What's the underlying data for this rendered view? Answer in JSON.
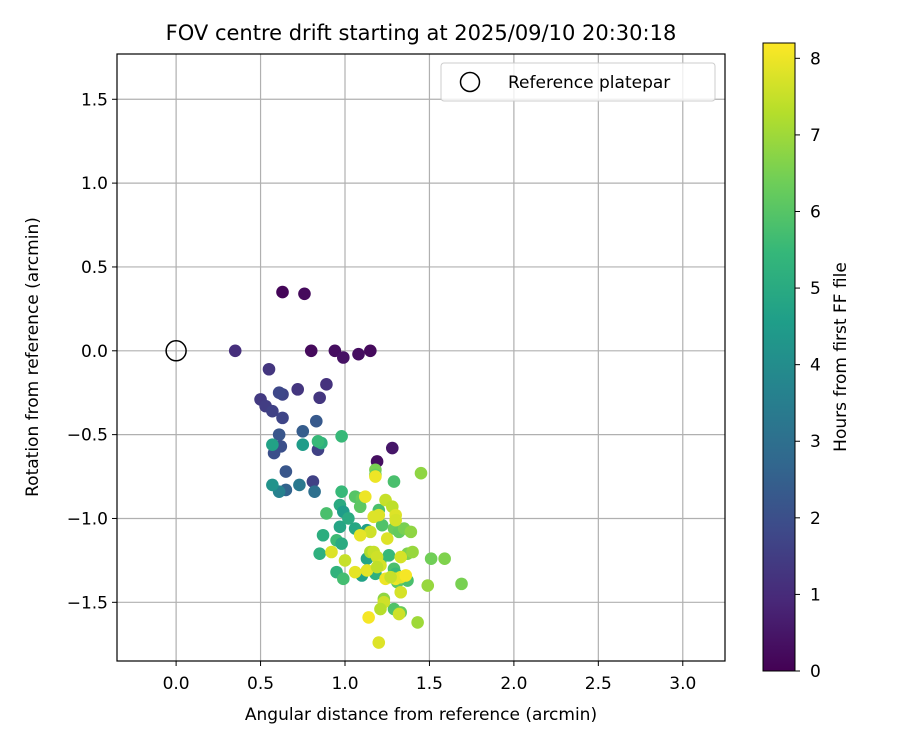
{
  "chart_data": {
    "type": "scatter",
    "title": "FOV centre drift starting at 2025/09/10 20:30:18",
    "xlabel": "Angular distance from reference (arcmin)",
    "ylabel": "Rotation from reference (arcmin)",
    "xlim": [
      -0.35,
      3.25
    ],
    "ylim": [
      -1.85,
      1.77
    ],
    "xticks": [
      0.0,
      0.5,
      1.0,
      1.5,
      2.0,
      2.5,
      3.0
    ],
    "xtick_labels": [
      "0.0",
      "0.5",
      "1.0",
      "1.5",
      "2.0",
      "2.5",
      "3.0"
    ],
    "yticks": [
      1.5,
      1.0,
      0.5,
      0.0,
      -0.5,
      -1.0,
      -1.5
    ],
    "ytick_labels": [
      "1.5",
      "1.0",
      "0.5",
      "0.0",
      "−0.5",
      "−1.0",
      "−1.5"
    ],
    "grid": true,
    "legend": {
      "position": "top-right",
      "entries": [
        {
          "label": "Reference platepar",
          "marker": "open-circle"
        }
      ]
    },
    "reference_point": {
      "x": 0.0,
      "y": 0.0
    },
    "colorbar": {
      "label": "Hours from first FF file",
      "colormap": "viridis",
      "min": 0,
      "max": 8.2,
      "ticks": [
        0,
        1,
        2,
        3,
        4,
        5,
        6,
        7,
        8
      ],
      "tick_labels": [
        "0",
        "1",
        "2",
        "3",
        "4",
        "5",
        "6",
        "7",
        "8"
      ],
      "stops": [
        "#440154",
        "#482878",
        "#3e4989",
        "#31688e",
        "#26828e",
        "#1f9e89",
        "#35b779",
        "#6ece58",
        "#b5de2b",
        "#fde725"
      ]
    },
    "points": [
      {
        "x": 0.63,
        "y": 0.35,
        "c": 0.1
      },
      {
        "x": 0.76,
        "y": 0.34,
        "c": 0.2
      },
      {
        "x": 0.8,
        "y": 0.0,
        "c": 0.2
      },
      {
        "x": 0.94,
        "y": 0.0,
        "c": 0.3
      },
      {
        "x": 0.99,
        "y": -0.04,
        "c": 0.4
      },
      {
        "x": 1.08,
        "y": -0.02,
        "c": 0.3
      },
      {
        "x": 1.15,
        "y": 0.0,
        "c": 0.2
      },
      {
        "x": 1.19,
        "y": -0.66,
        "c": 0.3
      },
      {
        "x": 1.28,
        "y": -0.58,
        "c": 0.5
      },
      {
        "x": 0.35,
        "y": 0.0,
        "c": 1.1
      },
      {
        "x": 0.55,
        "y": -0.11,
        "c": 1.3
      },
      {
        "x": 0.89,
        "y": -0.2,
        "c": 1.2
      },
      {
        "x": 0.72,
        "y": -0.23,
        "c": 1.3
      },
      {
        "x": 0.85,
        "y": -0.28,
        "c": 1.3
      },
      {
        "x": 0.5,
        "y": -0.29,
        "c": 1.4
      },
      {
        "x": 0.53,
        "y": -0.33,
        "c": 1.5
      },
      {
        "x": 0.57,
        "y": -0.36,
        "c": 1.6
      },
      {
        "x": 0.63,
        "y": -0.26,
        "c": 1.7
      },
      {
        "x": 0.61,
        "y": -0.25,
        "c": 1.8
      },
      {
        "x": 0.63,
        "y": -0.4,
        "c": 1.7
      },
      {
        "x": 0.61,
        "y": -0.5,
        "c": 2.2
      },
      {
        "x": 0.62,
        "y": -0.57,
        "c": 2.0
      },
      {
        "x": 0.58,
        "y": -0.61,
        "c": 2.0
      },
      {
        "x": 0.65,
        "y": -0.72,
        "c": 2.2
      },
      {
        "x": 0.83,
        "y": -0.42,
        "c": 2.3
      },
      {
        "x": 0.75,
        "y": -0.48,
        "c": 2.4
      },
      {
        "x": 0.84,
        "y": -0.59,
        "c": 1.6
      },
      {
        "x": 0.81,
        "y": -0.78,
        "c": 1.6
      },
      {
        "x": 0.73,
        "y": -0.8,
        "c": 3.3
      },
      {
        "x": 0.82,
        "y": -0.84,
        "c": 3.0
      },
      {
        "x": 0.65,
        "y": -0.83,
        "c": 2.6
      },
      {
        "x": 0.61,
        "y": -0.84,
        "c": 3.6
      },
      {
        "x": 0.57,
        "y": -0.8,
        "c": 4.2
      },
      {
        "x": 0.57,
        "y": -0.56,
        "c": 4.7
      },
      {
        "x": 0.75,
        "y": -0.56,
        "c": 4.5
      },
      {
        "x": 0.86,
        "y": -0.55,
        "c": 5.2
      },
      {
        "x": 0.84,
        "y": -0.54,
        "c": 5.5
      },
      {
        "x": 0.98,
        "y": -0.51,
        "c": 5.5
      },
      {
        "x": 0.98,
        "y": -0.84,
        "c": 5.5
      },
      {
        "x": 0.89,
        "y": -0.97,
        "c": 5.8
      },
      {
        "x": 0.97,
        "y": -0.92,
        "c": 5.0
      },
      {
        "x": 0.99,
        "y": -0.96,
        "c": 4.5
      },
      {
        "x": 0.97,
        "y": -1.05,
        "c": 4.8
      },
      {
        "x": 1.02,
        "y": -1.0,
        "c": 5.0
      },
      {
        "x": 1.06,
        "y": -0.87,
        "c": 6.0
      },
      {
        "x": 1.1,
        "y": -0.88,
        "c": 6.2
      },
      {
        "x": 1.09,
        "y": -0.93,
        "c": 6.1
      },
      {
        "x": 1.06,
        "y": -1.06,
        "c": 4.9
      },
      {
        "x": 1.13,
        "y": -1.07,
        "c": 4.6
      },
      {
        "x": 1.2,
        "y": -0.95,
        "c": 5.8
      },
      {
        "x": 1.18,
        "y": -0.71,
        "c": 6.5
      },
      {
        "x": 1.18,
        "y": -0.74,
        "c": 6.3
      },
      {
        "x": 1.29,
        "y": -0.78,
        "c": 5.8
      },
      {
        "x": 1.45,
        "y": -0.73,
        "c": 6.8
      },
      {
        "x": 0.87,
        "y": -1.1,
        "c": 5.1
      },
      {
        "x": 0.85,
        "y": -1.21,
        "c": 5.2
      },
      {
        "x": 0.95,
        "y": -1.13,
        "c": 5.6
      },
      {
        "x": 0.98,
        "y": -1.15,
        "c": 5.0
      },
      {
        "x": 0.95,
        "y": -1.32,
        "c": 5.3
      },
      {
        "x": 0.99,
        "y": -1.36,
        "c": 5.7
      },
      {
        "x": 1.1,
        "y": -1.34,
        "c": 4.7
      },
      {
        "x": 1.13,
        "y": -1.24,
        "c": 4.8
      },
      {
        "x": 1.18,
        "y": -1.33,
        "c": 5.2
      },
      {
        "x": 1.21,
        "y": -1.25,
        "c": 5.6
      },
      {
        "x": 1.26,
        "y": -1.22,
        "c": 5.5
      },
      {
        "x": 1.22,
        "y": -1.04,
        "c": 5.9
      },
      {
        "x": 1.29,
        "y": -1.06,
        "c": 6.3
      },
      {
        "x": 1.32,
        "y": -1.08,
        "c": 6.2
      },
      {
        "x": 1.35,
        "y": -1.06,
        "c": 6.5
      },
      {
        "x": 1.39,
        "y": -1.08,
        "c": 6.8
      },
      {
        "x": 1.37,
        "y": -1.21,
        "c": 6.6
      },
      {
        "x": 1.4,
        "y": -1.2,
        "c": 6.9
      },
      {
        "x": 1.51,
        "y": -1.24,
        "c": 6.4
      },
      {
        "x": 1.59,
        "y": -1.24,
        "c": 6.6
      },
      {
        "x": 1.69,
        "y": -1.39,
        "c": 6.5
      },
      {
        "x": 1.49,
        "y": -1.4,
        "c": 6.9
      },
      {
        "x": 1.43,
        "y": -1.62,
        "c": 7.0
      },
      {
        "x": 1.29,
        "y": -1.3,
        "c": 5.8
      },
      {
        "x": 1.3,
        "y": -1.33,
        "c": 5.5
      },
      {
        "x": 1.31,
        "y": -1.38,
        "c": 6.1
      },
      {
        "x": 1.37,
        "y": -1.37,
        "c": 5.8
      },
      {
        "x": 1.29,
        "y": -1.54,
        "c": 5.9
      },
      {
        "x": 1.33,
        "y": -1.56,
        "c": 6.3
      },
      {
        "x": 1.23,
        "y": -1.48,
        "c": 6.8
      },
      {
        "x": 1.23,
        "y": -1.5,
        "c": 7.6
      },
      {
        "x": 1.21,
        "y": -1.54,
        "c": 7.3
      },
      {
        "x": 1.12,
        "y": -0.87,
        "c": 8.0
      },
      {
        "x": 1.2,
        "y": -0.98,
        "c": 7.8
      },
      {
        "x": 1.18,
        "y": -0.75,
        "c": 8.0
      },
      {
        "x": 1.24,
        "y": -0.89,
        "c": 7.5
      },
      {
        "x": 1.28,
        "y": -0.93,
        "c": 7.4
      },
      {
        "x": 1.3,
        "y": -0.98,
        "c": 7.8
      },
      {
        "x": 1.3,
        "y": -1.01,
        "c": 7.7
      },
      {
        "x": 1.17,
        "y": -0.99,
        "c": 7.8
      },
      {
        "x": 1.15,
        "y": -1.08,
        "c": 7.6
      },
      {
        "x": 1.09,
        "y": -1.1,
        "c": 7.9
      },
      {
        "x": 1.25,
        "y": -1.12,
        "c": 7.8
      },
      {
        "x": 1.33,
        "y": -1.23,
        "c": 7.7
      },
      {
        "x": 0.92,
        "y": -1.2,
        "c": 7.8
      },
      {
        "x": 1.0,
        "y": -1.25,
        "c": 7.5
      },
      {
        "x": 1.06,
        "y": -1.32,
        "c": 7.9
      },
      {
        "x": 1.13,
        "y": -1.31,
        "c": 7.9
      },
      {
        "x": 1.15,
        "y": -1.2,
        "c": 7.2
      },
      {
        "x": 1.17,
        "y": -1.2,
        "c": 7.5
      },
      {
        "x": 1.19,
        "y": -1.23,
        "c": 7.6
      },
      {
        "x": 1.21,
        "y": -1.28,
        "c": 7.7
      },
      {
        "x": 1.19,
        "y": -1.29,
        "c": 7.4
      },
      {
        "x": 1.24,
        "y": -1.36,
        "c": 8.0
      },
      {
        "x": 1.3,
        "y": -1.36,
        "c": 8.0
      },
      {
        "x": 1.33,
        "y": -1.35,
        "c": 7.9
      },
      {
        "x": 1.36,
        "y": -1.34,
        "c": 8.1
      },
      {
        "x": 1.33,
        "y": -1.44,
        "c": 7.7
      },
      {
        "x": 1.27,
        "y": -1.35,
        "c": 7.5
      },
      {
        "x": 1.14,
        "y": -1.59,
        "c": 8.1
      },
      {
        "x": 1.32,
        "y": -1.57,
        "c": 7.6
      },
      {
        "x": 1.2,
        "y": -1.74,
        "c": 7.8
      }
    ]
  }
}
